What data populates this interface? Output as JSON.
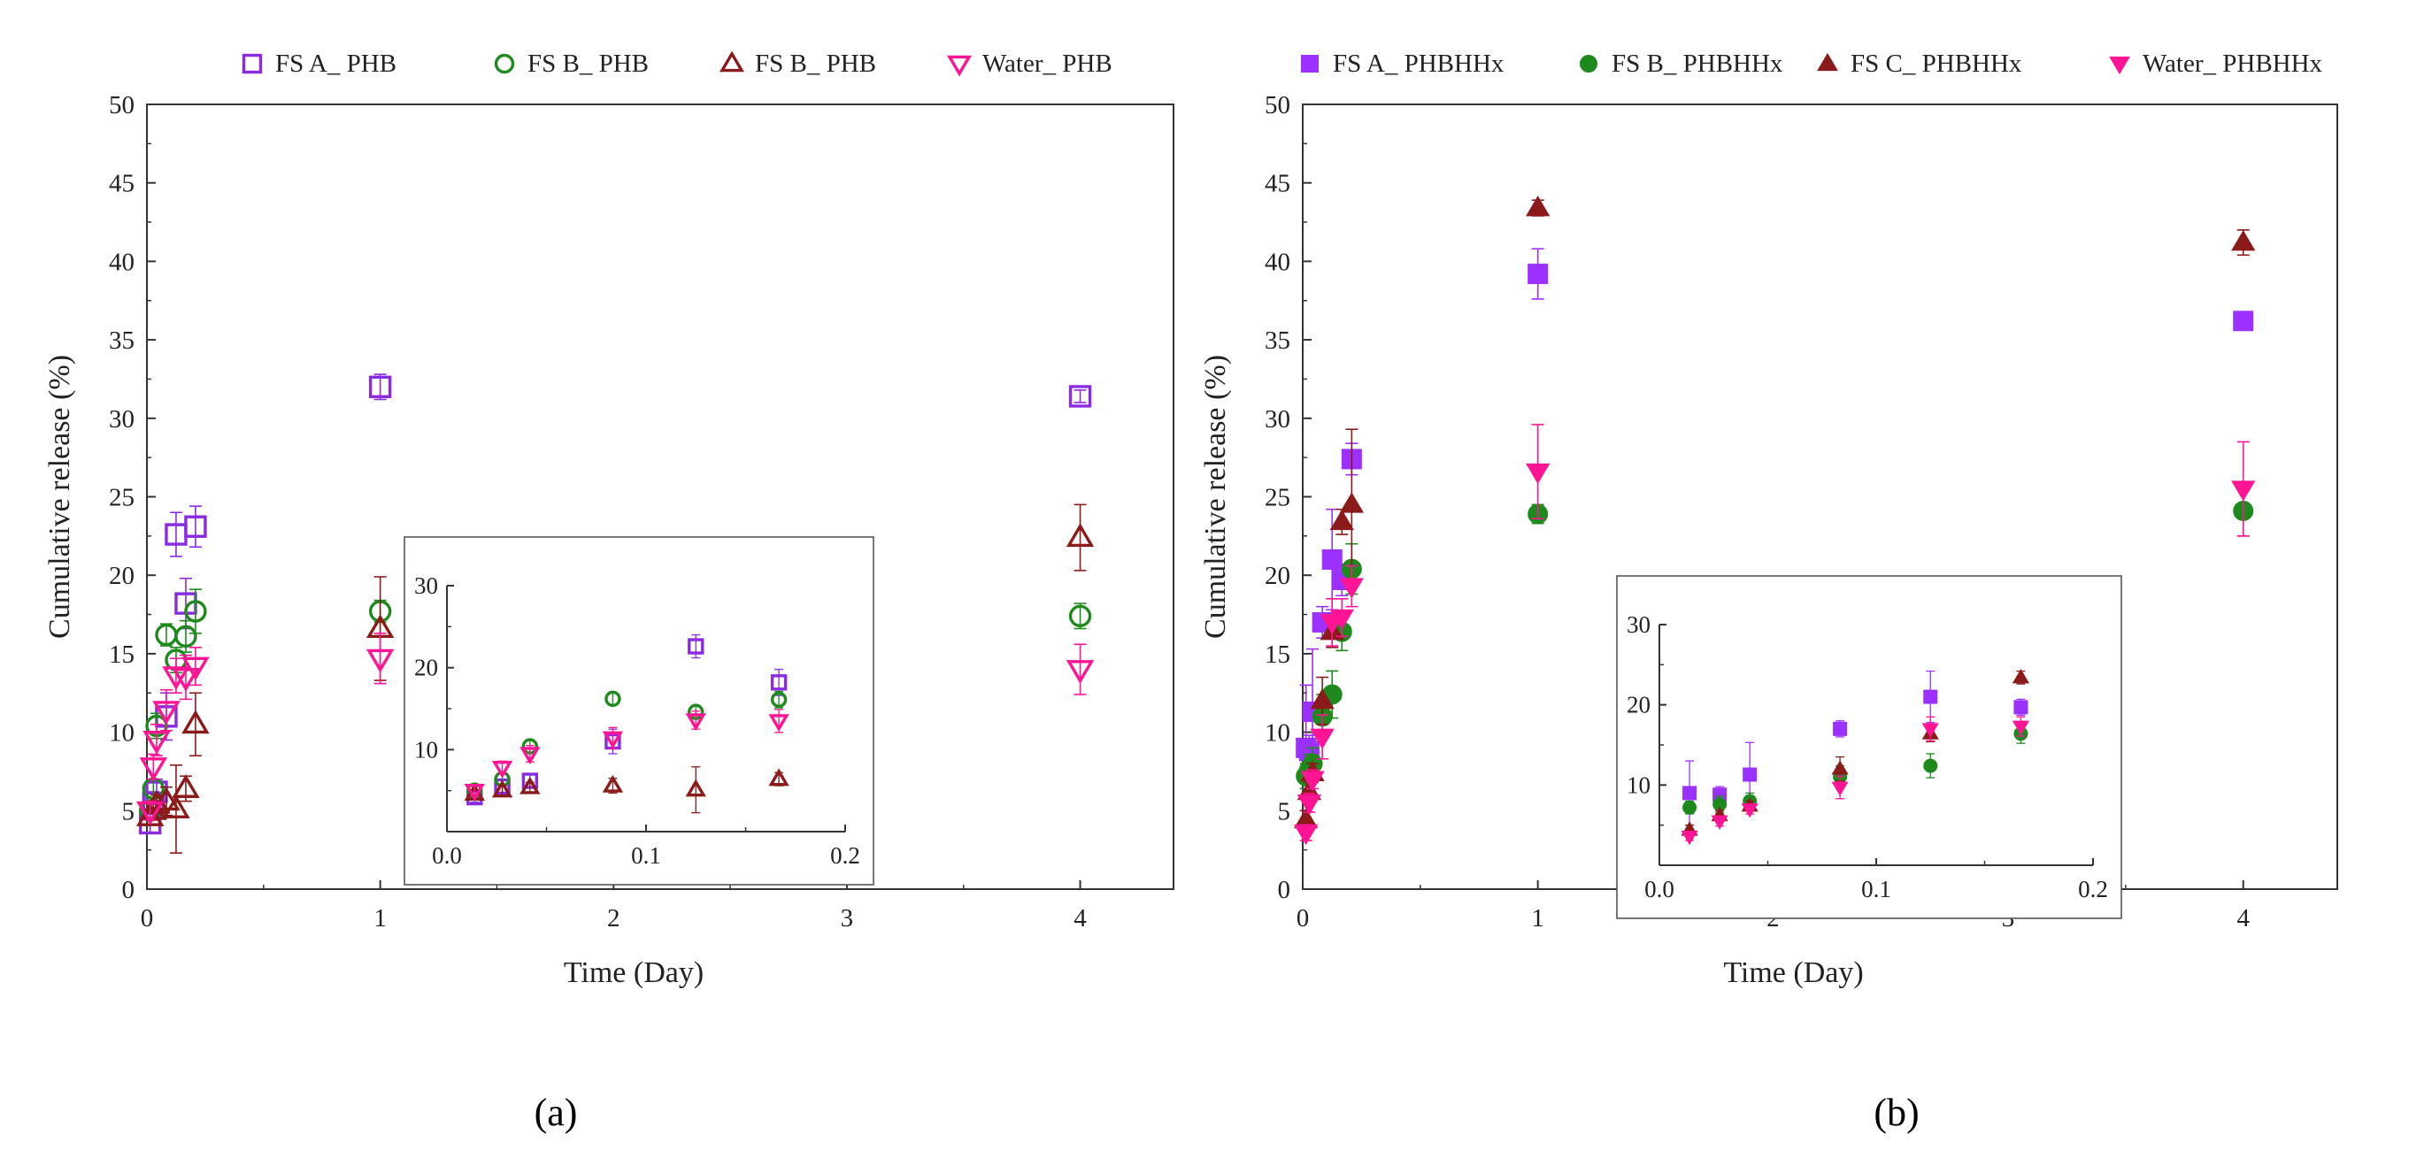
{
  "figure": {
    "panel_labels": {
      "a": "(a)",
      "b": "(b)"
    }
  },
  "chart_data": [
    {
      "id": "a",
      "type": "scatter",
      "xlabel": "Time (Day)",
      "ylabel": "Cumulative release (%)",
      "xlim": [
        0,
        4.4
      ],
      "ylim": [
        0,
        50
      ],
      "xticks": [
        0,
        1,
        2,
        3,
        4
      ],
      "yticks": [
        0,
        5,
        10,
        15,
        20,
        25,
        30,
        35,
        40,
        45,
        50
      ],
      "legend_position": "top",
      "series": [
        {
          "name": "FS A_ PHB",
          "marker": "square-open",
          "color": "#8A2BE2",
          "x": [
            0.0139,
            0.0278,
            0.0417,
            0.0833,
            0.125,
            0.1667,
            0.2083,
            1,
            4
          ],
          "y": [
            4.2,
            5.5,
            6.2,
            11.0,
            22.6,
            18.2,
            23.1,
            32.0,
            31.4
          ],
          "err": [
            0.6,
            0.7,
            0.8,
            1.5,
            1.4,
            1.6,
            1.3,
            0.8,
            0.4
          ]
        },
        {
          "name": "FS B_ PHB",
          "marker": "circle-open",
          "color": "#1E8A1E",
          "x": [
            0.0139,
            0.0278,
            0.0417,
            0.0833,
            0.125,
            0.1667,
            0.2083,
            1,
            4
          ],
          "y": [
            5.0,
            6.4,
            10.4,
            16.2,
            14.6,
            16.1,
            17.7,
            17.7,
            17.4
          ],
          "err": [
            0.5,
            0.6,
            0.8,
            0.7,
            0.8,
            1.0,
            1.4,
            0.7,
            0.8
          ]
        },
        {
          "name": "FS B_ PHB",
          "marker": "triangle-up-open",
          "color": "#8B1A1A",
          "x": [
            0.0139,
            0.0278,
            0.0417,
            0.0833,
            0.125,
            0.1667,
            0.2083,
            1,
            4
          ],
          "y": [
            4.6,
            5.0,
            5.4,
            5.6,
            5.1,
            6.4,
            10.5,
            16.6,
            22.4
          ],
          "err": [
            0.5,
            0.6,
            0.6,
            0.9,
            2.8,
            0.8,
            2.0,
            3.3,
            2.1
          ]
        },
        {
          "name": "Water_ PHB",
          "marker": "triangle-down-open",
          "color": "#FF1493",
          "x": [
            0.0139,
            0.0278,
            0.0417,
            0.0833,
            0.125,
            0.1667,
            0.2083,
            1,
            4
          ],
          "y": [
            5.0,
            7.8,
            9.5,
            11.4,
            13.6,
            13.5,
            14.2,
            14.7,
            14.0
          ],
          "err": [
            0.6,
            0.8,
            1.0,
            1.3,
            1.1,
            1.4,
            1.2,
            1.6,
            1.6
          ]
        }
      ],
      "inset": {
        "xlim": [
          0,
          0.2
        ],
        "ylim": [
          0,
          30
        ],
        "xticks": [
          0.0,
          0.1,
          0.2
        ],
        "yticks": [
          10,
          20,
          30
        ],
        "xtick_labels": [
          "0.0",
          "0.1",
          "0.2"
        ],
        "ytick_labels": [
          "10",
          "20",
          "30"
        ]
      }
    },
    {
      "id": "b",
      "type": "scatter",
      "xlabel": "Time (Day)",
      "ylabel": "Cumulative release (%)",
      "xlim": [
        0,
        4.4
      ],
      "ylim": [
        0,
        50
      ],
      "xticks": [
        0,
        1,
        2,
        3,
        4
      ],
      "yticks": [
        0,
        5,
        10,
        15,
        20,
        25,
        30,
        35,
        40,
        45,
        50
      ],
      "legend_position": "top",
      "series": [
        {
          "name": "FS A_ PHBHHx",
          "marker": "square-filled",
          "color": "#9B30FF",
          "x": [
            0.0139,
            0.0278,
            0.0417,
            0.0833,
            0.125,
            0.1667,
            0.2083,
            1,
            4
          ],
          "y": [
            9.0,
            8.8,
            11.3,
            17.0,
            21.0,
            19.7,
            27.4,
            39.2,
            36.2
          ],
          "err": [
            4.0,
            1.0,
            4.0,
            1.0,
            3.2,
            1.0,
            1.0,
            1.6,
            0.4
          ]
        },
        {
          "name": "FS B_ PHBHHx",
          "marker": "circle-filled",
          "color": "#1E8A1E",
          "x": [
            0.0139,
            0.0278,
            0.0417,
            0.0833,
            0.125,
            0.1667,
            0.2083,
            1,
            4
          ],
          "y": [
            7.2,
            7.6,
            8.0,
            11.0,
            12.4,
            16.4,
            20.4,
            23.9,
            24.1
          ],
          "err": [
            0.8,
            1.0,
            1.0,
            1.4,
            1.5,
            1.2,
            1.6,
            0.6,
            1.6
          ]
        },
        {
          "name": "FS C_ PHBHHx",
          "marker": "triangle-up-filled",
          "color": "#8B1A1A",
          "x": [
            0.0139,
            0.0278,
            0.0417,
            0.0833,
            0.125,
            0.1667,
            0.2083,
            1,
            4
          ],
          "y": [
            4.4,
            6.2,
            7.4,
            12.0,
            16.4,
            23.4,
            24.5,
            43.4,
            41.2
          ],
          "err": [
            0.6,
            0.6,
            0.6,
            1.5,
            1.0,
            0.8,
            4.8,
            0.5,
            0.8
          ]
        },
        {
          "name": "Water_ PHBHHx",
          "marker": "triangle-down-filled",
          "color": "#FF1493",
          "x": [
            0.0139,
            0.0278,
            0.0417,
            0.0833,
            0.125,
            0.1667,
            0.2083,
            1,
            4
          ],
          "y": [
            3.6,
            5.5,
            7.0,
            9.7,
            17.0,
            17.3,
            19.3,
            26.6,
            25.5
          ],
          "err": [
            0.5,
            0.6,
            0.6,
            1.4,
            1.5,
            1.2,
            1.3,
            3.0,
            3.0
          ]
        }
      ],
      "inset": {
        "xlim": [
          0,
          0.2
        ],
        "ylim": [
          0,
          30
        ],
        "xticks": [
          0.0,
          0.1,
          0.2
        ],
        "yticks": [
          10,
          20,
          30
        ],
        "xtick_labels": [
          "0.0",
          "0.1",
          "0.2"
        ],
        "ytick_labels": [
          "10",
          "20",
          "30"
        ]
      }
    }
  ]
}
